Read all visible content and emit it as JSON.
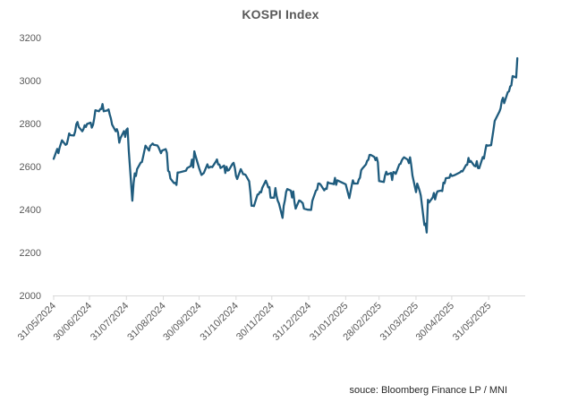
{
  "title": "KOSPI Index",
  "source_note": "souce: Bloomberg Finance LP / MNI",
  "colors": {
    "line": "#1F5C7E",
    "axis": "#D9D9D9",
    "tick_labels": "#595959",
    "title": "#595959",
    "source": "#262626"
  },
  "chart_data": {
    "type": "line",
    "title": "KOSPI Index",
    "ylabel": "",
    "xlabel": "",
    "ylim": [
      2000,
      3200
    ],
    "y_ticks": [
      2000,
      2200,
      2400,
      2600,
      2800,
      3000,
      3200
    ],
    "grid": false,
    "legend": "none",
    "x_unit": "days since 31/05/2024",
    "x_ticks": [
      {
        "d": 0,
        "label": "31/05/2024"
      },
      {
        "d": 30,
        "label": "30/06/2024"
      },
      {
        "d": 61,
        "label": "31/07/2024"
      },
      {
        "d": 92,
        "label": "31/08/2024"
      },
      {
        "d": 122,
        "label": "30/09/2024"
      },
      {
        "d": 153,
        "label": "31/10/2024"
      },
      {
        "d": 183,
        "label": "30/11/2024"
      },
      {
        "d": 214,
        "label": "31/12/2024"
      },
      {
        "d": 245,
        "label": "31/01/2025"
      },
      {
        "d": 273,
        "label": "28/02/2025"
      },
      {
        "d": 304,
        "label": "31/03/2025"
      },
      {
        "d": 334,
        "label": "30/04/2025"
      },
      {
        "d": 365,
        "label": "31/05/2025"
      }
    ],
    "series": [
      {
        "name": "KOSPI Index",
        "color": "#1F5C7E",
        "points": [
          [
            0,
            2636
          ],
          [
            3,
            2682
          ],
          [
            4,
            2662
          ],
          [
            5,
            2689
          ],
          [
            7,
            2722
          ],
          [
            10,
            2701
          ],
          [
            11,
            2705
          ],
          [
            12,
            2728
          ],
          [
            13,
            2754
          ],
          [
            14,
            2746
          ],
          [
            17,
            2744
          ],
          [
            18,
            2763
          ],
          [
            19,
            2797
          ],
          [
            20,
            2807
          ],
          [
            21,
            2784
          ],
          [
            24,
            2764
          ],
          [
            25,
            2774
          ],
          [
            26,
            2792
          ],
          [
            27,
            2784
          ],
          [
            28,
            2798
          ],
          [
            31,
            2804
          ],
          [
            32,
            2781
          ],
          [
            33,
            2794
          ],
          [
            34,
            2824
          ],
          [
            35,
            2862
          ],
          [
            38,
            2857
          ],
          [
            39,
            2867
          ],
          [
            40,
            2868
          ],
          [
            41,
            2891
          ],
          [
            42,
            2857
          ],
          [
            45,
            2861
          ],
          [
            46,
            2866
          ],
          [
            47,
            2843
          ],
          [
            48,
            2824
          ],
          [
            49,
            2795
          ],
          [
            52,
            2764
          ],
          [
            53,
            2774
          ],
          [
            54,
            2758
          ],
          [
            55,
            2711
          ],
          [
            56,
            2732
          ],
          [
            59,
            2765
          ],
          [
            60,
            2738
          ],
          [
            61,
            2771
          ],
          [
            62,
            2777
          ],
          [
            63,
            2676
          ],
          [
            66,
            2441
          ],
          [
            67,
            2522
          ],
          [
            68,
            2568
          ],
          [
            69,
            2556
          ],
          [
            70,
            2588
          ],
          [
            73,
            2618
          ],
          [
            74,
            2621
          ],
          [
            75,
            2644
          ],
          [
            77,
            2697
          ],
          [
            80,
            2674
          ],
          [
            81,
            2696
          ],
          [
            82,
            2701
          ],
          [
            83,
            2707
          ],
          [
            84,
            2701
          ],
          [
            87,
            2698
          ],
          [
            88,
            2689
          ],
          [
            90,
            2662
          ],
          [
            91,
            2674
          ],
          [
            94,
            2681
          ],
          [
            95,
            2664
          ],
          [
            96,
            2580
          ],
          [
            97,
            2575
          ],
          [
            98,
            2544
          ],
          [
            101,
            2523
          ],
          [
            102,
            2524
          ],
          [
            103,
            2514
          ],
          [
            104,
            2572
          ],
          [
            105,
            2572
          ],
          [
            111,
            2581
          ],
          [
            112,
            2593
          ],
          [
            115,
            2602
          ],
          [
            116,
            2632
          ],
          [
            117,
            2596
          ],
          [
            118,
            2671
          ],
          [
            119,
            2650
          ],
          [
            122,
            2593
          ],
          [
            124,
            2561
          ],
          [
            126,
            2570
          ],
          [
            129,
            2610
          ],
          [
            130,
            2594
          ],
          [
            132,
            2599
          ],
          [
            133,
            2597
          ],
          [
            136,
            2623
          ],
          [
            137,
            2633
          ],
          [
            138,
            2610
          ],
          [
            139,
            2609
          ],
          [
            140,
            2593
          ],
          [
            143,
            2604
          ],
          [
            144,
            2570
          ],
          [
            145,
            2599
          ],
          [
            146,
            2581
          ],
          [
            147,
            2583
          ],
          [
            150,
            2612
          ],
          [
            151,
            2617
          ],
          [
            152,
            2593
          ],
          [
            153,
            2556
          ],
          [
            154,
            2542
          ],
          [
            157,
            2588
          ],
          [
            158,
            2576
          ],
          [
            159,
            2564
          ],
          [
            160,
            2564
          ],
          [
            161,
            2561
          ],
          [
            164,
            2531
          ],
          [
            165,
            2482
          ],
          [
            166,
            2417
          ],
          [
            167,
            2418
          ],
          [
            168,
            2416
          ],
          [
            171,
            2469
          ],
          [
            172,
            2471
          ],
          [
            173,
            2482
          ],
          [
            174,
            2480
          ],
          [
            175,
            2501
          ],
          [
            178,
            2534
          ],
          [
            179,
            2521
          ],
          [
            180,
            2503
          ],
          [
            181,
            2504
          ],
          [
            182,
            2455
          ],
          [
            185,
            2455
          ],
          [
            186,
            2500
          ],
          [
            187,
            2464
          ],
          [
            188,
            2441
          ],
          [
            189,
            2428
          ],
          [
            192,
            2361
          ],
          [
            193,
            2417
          ],
          [
            194,
            2442
          ],
          [
            195,
            2482
          ],
          [
            196,
            2495
          ],
          [
            199,
            2488
          ],
          [
            200,
            2456
          ],
          [
            201,
            2484
          ],
          [
            202,
            2435
          ],
          [
            203,
            2404
          ],
          [
            206,
            2442
          ],
          [
            207,
            2440
          ],
          [
            209,
            2429
          ],
          [
            210,
            2404
          ],
          [
            213,
            2399
          ],
          [
            216,
            2398
          ],
          [
            217,
            2441
          ],
          [
            220,
            2488
          ],
          [
            221,
            2492
          ],
          [
            222,
            2521
          ],
          [
            223,
            2521
          ],
          [
            224,
            2515
          ],
          [
            227,
            2489
          ],
          [
            228,
            2497
          ],
          [
            229,
            2496
          ],
          [
            230,
            2527
          ],
          [
            231,
            2523
          ],
          [
            234,
            2520
          ],
          [
            235,
            2518
          ],
          [
            236,
            2547
          ],
          [
            237,
            2515
          ],
          [
            238,
            2536
          ],
          [
            245,
            2517
          ],
          [
            248,
            2453
          ],
          [
            249,
            2481
          ],
          [
            250,
            2509
          ],
          [
            251,
            2536
          ],
          [
            252,
            2521
          ],
          [
            255,
            2521
          ],
          [
            256,
            2539
          ],
          [
            257,
            2548
          ],
          [
            258,
            2583
          ],
          [
            259,
            2591
          ],
          [
            262,
            2610
          ],
          [
            263,
            2626
          ],
          [
            264,
            2632
          ],
          [
            265,
            2654
          ],
          [
            266,
            2654
          ],
          [
            269,
            2645
          ],
          [
            270,
            2630
          ],
          [
            271,
            2641
          ],
          [
            272,
            2621
          ],
          [
            273,
            2532
          ],
          [
            277,
            2528
          ],
          [
            278,
            2558
          ],
          [
            279,
            2576
          ],
          [
            280,
            2563
          ],
          [
            283,
            2570
          ],
          [
            284,
            2537
          ],
          [
            285,
            2574
          ],
          [
            286,
            2573
          ],
          [
            287,
            2566
          ],
          [
            290,
            2610
          ],
          [
            291,
            2612
          ],
          [
            292,
            2628
          ],
          [
            293,
            2637
          ],
          [
            294,
            2643
          ],
          [
            297,
            2632
          ],
          [
            298,
            2616
          ],
          [
            299,
            2643
          ],
          [
            300,
            2607
          ],
          [
            301,
            2558
          ],
          [
            304,
            2481
          ],
          [
            305,
            2521
          ],
          [
            306,
            2505
          ],
          [
            307,
            2487
          ],
          [
            308,
            2465
          ],
          [
            311,
            2328
          ],
          [
            312,
            2334
          ],
          [
            313,
            2293
          ],
          [
            314,
            2445
          ],
          [
            315,
            2433
          ],
          [
            318,
            2456
          ],
          [
            319,
            2477
          ],
          [
            320,
            2447
          ],
          [
            321,
            2470
          ],
          [
            322,
            2484
          ],
          [
            325,
            2488
          ],
          [
            326,
            2486
          ],
          [
            327,
            2525
          ],
          [
            328,
            2522
          ],
          [
            329,
            2546
          ],
          [
            332,
            2548
          ],
          [
            333,
            2565
          ],
          [
            334,
            2556
          ],
          [
            336,
            2559
          ],
          [
            341,
            2573
          ],
          [
            342,
            2579
          ],
          [
            343,
            2577
          ],
          [
            346,
            2607
          ],
          [
            347,
            2608
          ],
          [
            348,
            2640
          ],
          [
            349,
            2621
          ],
          [
            350,
            2626
          ],
          [
            353,
            2603
          ],
          [
            354,
            2601
          ],
          [
            355,
            2625
          ],
          [
            356,
            2593
          ],
          [
            357,
            2592
          ],
          [
            360,
            2644
          ],
          [
            361,
            2637
          ],
          [
            362,
            2670
          ],
          [
            363,
            2700
          ],
          [
            364,
            2697
          ],
          [
            367,
            2699
          ],
          [
            369,
            2770
          ],
          [
            370,
            2812
          ],
          [
            374,
            2856
          ],
          [
            375,
            2871
          ],
          [
            376,
            2907
          ],
          [
            377,
            2920
          ],
          [
            378,
            2895
          ],
          [
            381,
            2946
          ],
          [
            382,
            2950
          ],
          [
            383,
            2972
          ],
          [
            384,
            2978
          ],
          [
            385,
            3021
          ],
          [
            388,
            3014
          ],
          [
            389,
            3104
          ]
        ]
      }
    ]
  }
}
